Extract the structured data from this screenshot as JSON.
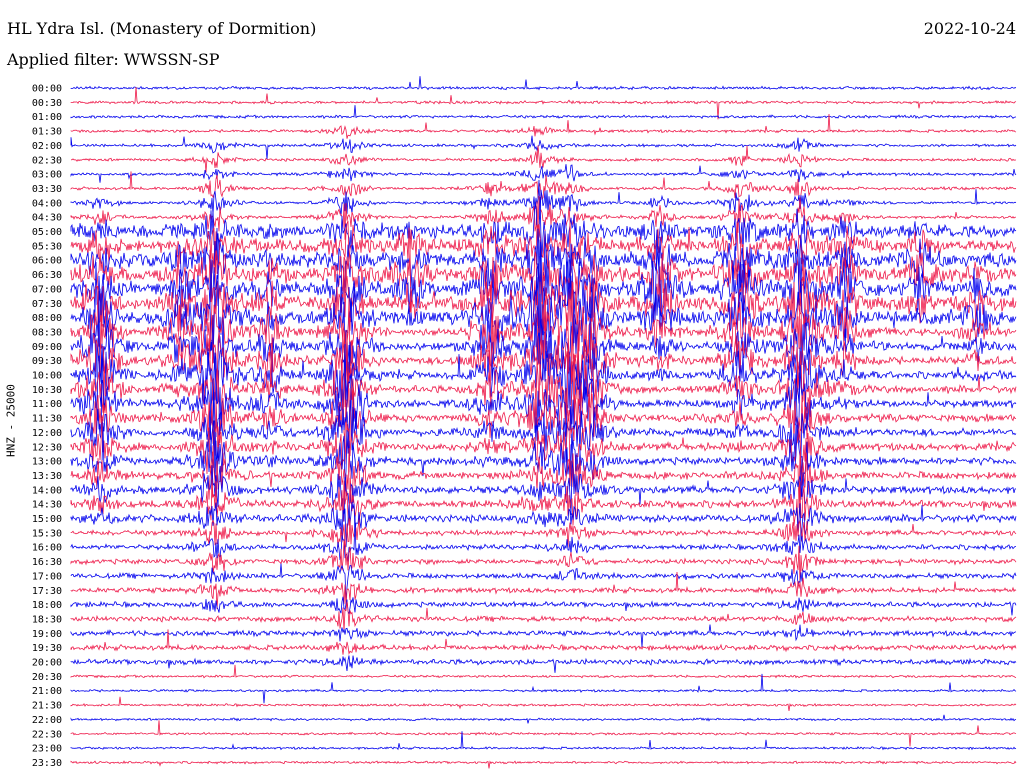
{
  "header": {
    "title": "HL Ydra Isl. (Monastery of Dormition)",
    "filter": "Applied filter: WWSSN-SP",
    "date": "2022-10-24",
    "channel_label": "HNZ - 25000"
  },
  "colors": {
    "even": "#0000ee",
    "odd": "#ee1a4a"
  },
  "chart_data": {
    "type": "line",
    "title": "HL Ydra Isl. (Monastery of Dormition)",
    "subtitle": "Applied filter: WWSSN-SP",
    "ylabel": "HNZ - 25000",
    "xlabel": "",
    "date": "2022-10-24",
    "trace_times": [
      "00:00",
      "00:30",
      "01:00",
      "01:30",
      "02:00",
      "02:30",
      "03:00",
      "03:30",
      "04:00",
      "04:30",
      "05:00",
      "05:30",
      "06:00",
      "06:30",
      "07:00",
      "07:30",
      "08:00",
      "08:30",
      "09:00",
      "09:30",
      "10:00",
      "10:30",
      "11:00",
      "11:30",
      "12:00",
      "12:30",
      "13:00",
      "13:30",
      "14:00",
      "14:30",
      "15:00",
      "15:30",
      "16:00",
      "16:30",
      "17:00",
      "17:30",
      "18:00",
      "18:30",
      "19:00",
      "19:30",
      "20:00",
      "20:30",
      "21:00",
      "21:30",
      "22:00",
      "22:30",
      "23:00",
      "23:30"
    ],
    "grid": false,
    "legend": "none"
  }
}
